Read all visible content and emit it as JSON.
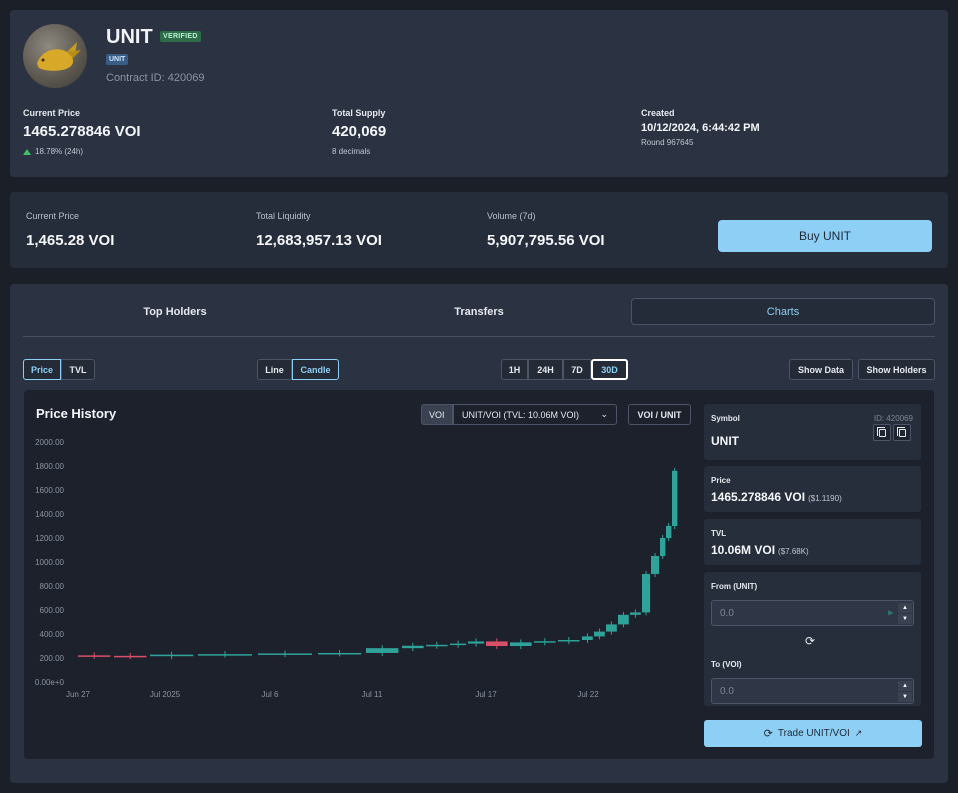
{
  "token": {
    "name": "UNIT",
    "verified_badge": "VERIFIED",
    "symbol_badge": "UNIT",
    "contract": "Contract ID: 420069",
    "current_price_label": "Current Price",
    "current_price": "1465.278846 VOI",
    "change_24h": "18.78% (24h)",
    "total_supply_label": "Total Supply",
    "total_supply": "420,069",
    "decimals": "8 decimals",
    "created_label": "Created",
    "created": "10/12/2024, 6:44:42 PM",
    "round": "Round 967645"
  },
  "stats": {
    "price_label": "Current Price",
    "price": "1,465.28 VOI",
    "liquidity_label": "Total Liquidity",
    "liquidity": "12,683,957.13 VOI",
    "volume_label": "Volume (7d)",
    "volume": "5,907,795.56 VOI",
    "buy_button": "Buy UNIT"
  },
  "tabs": {
    "holders": "Top Holders",
    "transfers": "Transfers",
    "charts": "Charts"
  },
  "controls": {
    "price": "Price",
    "tvl": "TVL",
    "line": "Line",
    "candle": "Candle",
    "tf_1h": "1H",
    "tf_24h": "24H",
    "tf_7d": "7D",
    "tf_30d": "30D",
    "show_data": "Show Data",
    "show_holders": "Show Holders",
    "active_metric": "Price",
    "active_style": "Candle",
    "active_timeframe": "30D"
  },
  "chart_panel": {
    "title": "Price History",
    "voi_tag": "VOI",
    "pool_select": "UNIT/VOI (TVL: 10.06M VOI)",
    "pair_button": "VOI / UNIT"
  },
  "side": {
    "symbol_label": "Symbol",
    "symbol_id": "ID: 420069",
    "symbol": "UNIT",
    "price_label": "Price",
    "price": "1465.278846 VOI",
    "price_usd": "($1.1190)",
    "tvl_label": "TVL",
    "tvl": "10.06M VOI",
    "tvl_usd": "($7.68K)",
    "from_label": "From (UNIT)",
    "from_placeholder": "0.0",
    "to_label": "To (VOI)",
    "to_placeholder": "0.0",
    "trade_button": "Trade UNIT/VOI"
  },
  "colors": {
    "accent": "#8ecff5",
    "up": "#2fa39a",
    "down": "#d9506a",
    "card": "#2b3342",
    "page": "#1b1f27"
  },
  "chart_data": {
    "type": "candlestick",
    "title": "Price History",
    "ylim": [
      0,
      2000
    ],
    "y_ticks": [
      "0.00e+0",
      "200.00",
      "400.00",
      "600.00",
      "800.00",
      "1000.00",
      "1200.00",
      "1400.00",
      "1600.00",
      "1800.00",
      "2000.00"
    ],
    "x_ticks": [
      "Jun 27",
      "Jul 2025",
      "Jul 6",
      "Jul 11",
      "Jul 17",
      "Jul 22"
    ],
    "grid": false,
    "series": [
      {
        "values": [
          {
            "x": 0.0,
            "y": 222
          },
          {
            "x": 0.06,
            "y": 218
          },
          {
            "x": 0.12,
            "y": 215
          },
          {
            "x": 0.2,
            "y": 228
          },
          {
            "x": 0.3,
            "y": 232
          },
          {
            "x": 0.4,
            "y": 238
          },
          {
            "x": 0.48,
            "y": 242
          },
          {
            "x": 0.54,
            "y": 282
          },
          {
            "x": 0.58,
            "y": 302
          },
          {
            "x": 0.62,
            "y": 310
          },
          {
            "x": 0.65,
            "y": 320
          },
          {
            "x": 0.68,
            "y": 338
          },
          {
            "x": 0.72,
            "y": 300
          },
          {
            "x": 0.76,
            "y": 330
          },
          {
            "x": 0.8,
            "y": 340
          },
          {
            "x": 0.84,
            "y": 350
          },
          {
            "x": 0.86,
            "y": 380
          },
          {
            "x": 0.88,
            "y": 420
          },
          {
            "x": 0.9,
            "y": 480
          },
          {
            "x": 0.92,
            "y": 560
          },
          {
            "x": 0.94,
            "y": 580
          },
          {
            "x": 0.955,
            "y": 900
          },
          {
            "x": 0.97,
            "y": 1050
          },
          {
            "x": 0.98,
            "y": 1200
          },
          {
            "x": 0.99,
            "y": 1300
          },
          {
            "x": 1.0,
            "y": 1760
          }
        ]
      }
    ]
  }
}
